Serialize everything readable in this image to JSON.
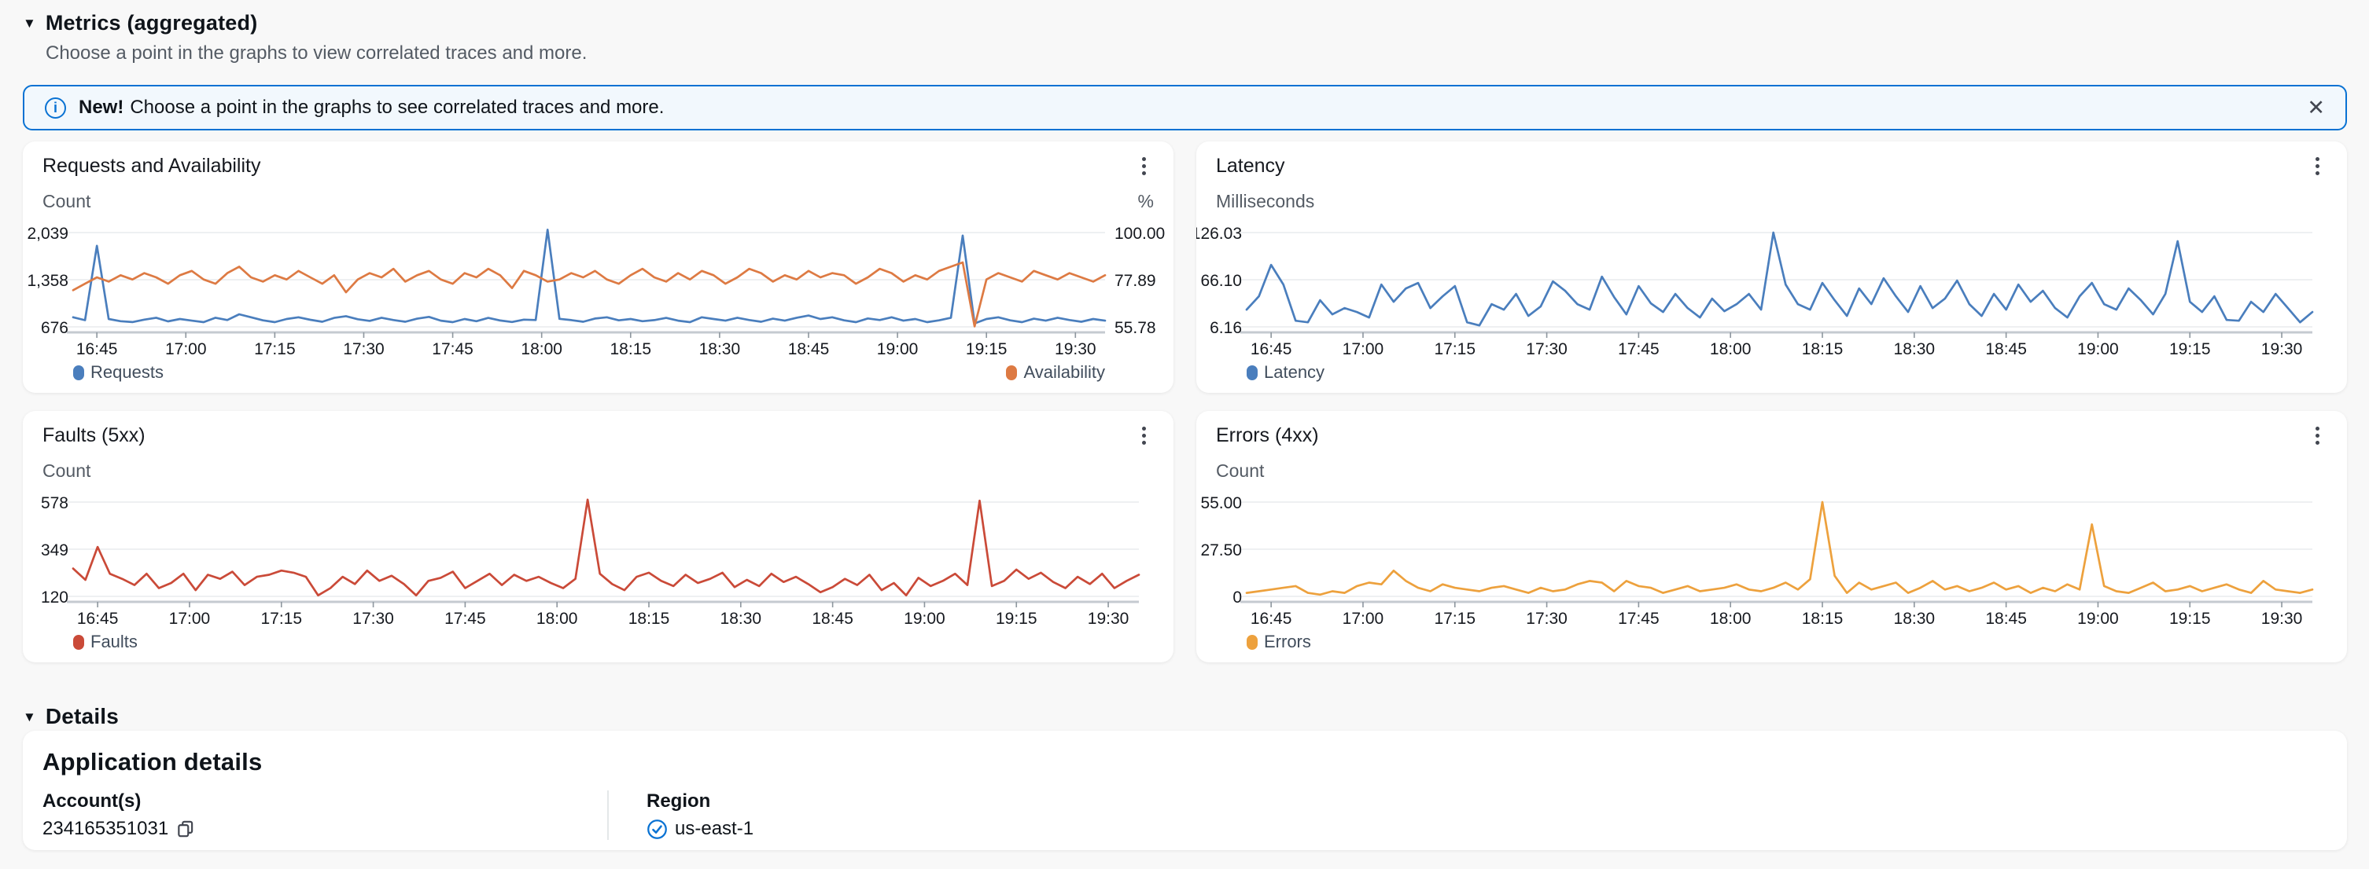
{
  "header": {
    "collapse_icon": "▼",
    "title": "Metrics (aggregated)",
    "subtitle": "Choose a point in the graphs to view correlated traces and more."
  },
  "banner": {
    "info_icon": "i",
    "prefix": "New!",
    "text": "Choose a point in the graphs to see correlated traces and more.",
    "close_icon": "✕"
  },
  "colors": {
    "accent_blue": "#0972d3",
    "series_blue": "#4a7ebd",
    "series_orange": "#dd7a43",
    "series_red": "#ca4a38",
    "series_amber": "#eda13d",
    "gridline": "#e9ebed",
    "baseline": "#c5cad0"
  },
  "x_window": {
    "start": "16:41",
    "end": "19:35",
    "total_min": 174,
    "first_tick_offset_min": 4,
    "tick_interval_min": 15
  },
  "chart_data": [
    {
      "type": "line",
      "title": "Requests and Availability",
      "ylabel": "Count",
      "ylabel_right": "%",
      "yticks": [
        "2,039",
        "1,358",
        "676"
      ],
      "yticks_right": [
        "100.00",
        "77.89",
        "55.78"
      ],
      "ylim": [
        676,
        2039
      ],
      "ylim_right": [
        55.78,
        100.0
      ],
      "x_ticks": [
        "16:45",
        "17:00",
        "17:15",
        "17:30",
        "17:45",
        "18:00",
        "18:15",
        "18:30",
        "18:45",
        "19:00",
        "19:15",
        "19:30"
      ],
      "series": [
        {
          "name": "Requests",
          "axis": "left",
          "color": "#4a7ebd",
          "values": [
            815,
            772,
            1848,
            790,
            758,
            745,
            780,
            808,
            755,
            790,
            766,
            744,
            808,
            775,
            858,
            815,
            770,
            744,
            790,
            815,
            778,
            750,
            805,
            830,
            786,
            762,
            808,
            775,
            750,
            794,
            820,
            766,
            744,
            790,
            758,
            805,
            768,
            746,
            780,
            775,
            2080,
            792,
            774,
            750,
            796,
            815,
            770,
            790,
            758,
            774,
            805,
            766,
            744,
            815,
            790,
            766,
            808,
            775,
            750,
            794,
            766,
            808,
            840,
            790,
            815,
            770,
            744,
            798,
            775,
            815,
            766,
            790,
            744,
            770,
            808,
            1996,
            726,
            790,
            815,
            770,
            744,
            794,
            766,
            808,
            775,
            750,
            790,
            766
          ]
        },
        {
          "name": "Availability",
          "axis": "right",
          "color": "#dd7a43",
          "values": [
            73,
            76,
            79,
            77,
            80,
            78,
            81,
            79,
            76,
            80,
            82,
            78,
            76,
            81,
            84,
            79,
            77,
            80,
            78,
            82,
            79,
            76,
            80,
            72,
            78,
            81,
            79,
            83,
            77,
            80,
            82,
            78,
            76,
            81,
            79,
            83,
            80,
            74,
            82,
            80,
            77,
            78,
            81,
            79,
            82,
            78,
            76,
            80,
            83,
            79,
            77,
            81,
            78,
            82,
            80,
            76,
            79,
            83,
            81,
            77,
            80,
            78,
            82,
            79,
            81,
            80,
            76,
            79,
            83,
            81,
            77,
            80,
            78,
            82,
            84,
            86,
            56,
            78,
            81,
            79,
            77,
            82,
            80,
            78,
            81,
            79,
            77,
            80
          ]
        }
      ],
      "legend": [
        {
          "label": "Requests"
        },
        {
          "label": "Availability"
        }
      ]
    },
    {
      "type": "line",
      "title": "Latency",
      "ylabel": "Milliseconds",
      "yticks": [
        "126.03",
        "66.10",
        "6.16"
      ],
      "ylim": [
        6.16,
        126.03
      ],
      "x_ticks": [
        "16:45",
        "17:00",
        "17:15",
        "17:30",
        "17:45",
        "18:00",
        "18:15",
        "18:30",
        "18:45",
        "19:00",
        "19:15",
        "19:30"
      ],
      "series": [
        {
          "name": "Latency",
          "axis": "left",
          "color": "#4a7ebd",
          "values": [
            28,
            45,
            85,
            60,
            14,
            12,
            40,
            22,
            30,
            25,
            18,
            60,
            38,
            55,
            62,
            30,
            45,
            58,
            12,
            8,
            35,
            28,
            48,
            20,
            32,
            64,
            52,
            35,
            28,
            70,
            44,
            22,
            58,
            36,
            25,
            48,
            30,
            18,
            42,
            26,
            35,
            48,
            28,
            126,
            60,
            35,
            28,
            62,
            40,
            20,
            55,
            35,
            68,
            45,
            25,
            58,
            30,
            42,
            65,
            35,
            20,
            48,
            28,
            60,
            38,
            52,
            30,
            18,
            45,
            62,
            35,
            28,
            55,
            40,
            22,
            48,
            115,
            38,
            25,
            45,
            15,
            14,
            38,
            25,
            48,
            30,
            12,
            25
          ]
        }
      ],
      "legend": [
        {
          "label": "Latency"
        }
      ]
    },
    {
      "type": "line",
      "title": "Faults (5xx)",
      "ylabel": "Count",
      "yticks": [
        "578",
        "349",
        "120"
      ],
      "ylim": [
        120,
        578
      ],
      "x_ticks": [
        "16:45",
        "17:00",
        "17:15",
        "17:30",
        "17:45",
        "18:00",
        "18:15",
        "18:30",
        "18:45",
        "19:00",
        "19:15",
        "19:30"
      ],
      "series": [
        {
          "name": "Faults",
          "axis": "left",
          "color": "#ca4a38",
          "values": [
            255,
            200,
            360,
            230,
            205,
            175,
            230,
            160,
            185,
            230,
            150,
            225,
            205,
            240,
            175,
            215,
            225,
            245,
            235,
            215,
            125,
            160,
            215,
            180,
            245,
            195,
            220,
            180,
            125,
            195,
            210,
            240,
            160,
            195,
            230,
            175,
            225,
            195,
            215,
            185,
            160,
            205,
            590,
            230,
            180,
            150,
            215,
            235,
            195,
            170,
            225,
            185,
            205,
            235,
            165,
            200,
            170,
            230,
            190,
            215,
            180,
            140,
            165,
            205,
            175,
            225,
            150,
            185,
            125,
            210,
            170,
            195,
            230,
            175,
            585,
            170,
            195,
            250,
            205,
            235,
            190,
            160,
            215,
            180,
            230,
            160,
            195,
            225
          ]
        }
      ],
      "legend": [
        {
          "label": "Faults"
        }
      ]
    },
    {
      "type": "line",
      "title": "Errors (4xx)",
      "ylabel": "Count",
      "yticks": [
        "55.00",
        "27.50",
        "0"
      ],
      "ylim": [
        0,
        55
      ],
      "x_ticks": [
        "16:45",
        "17:00",
        "17:15",
        "17:30",
        "17:45",
        "18:00",
        "18:15",
        "18:30",
        "18:45",
        "19:00",
        "19:15",
        "19:30"
      ],
      "series": [
        {
          "name": "Errors",
          "axis": "left",
          "color": "#eda13d",
          "values": [
            2,
            3,
            4,
            5,
            6,
            2,
            1,
            3,
            2,
            6,
            8,
            7,
            15,
            9,
            5,
            3,
            7,
            5,
            4,
            3,
            5,
            6,
            4,
            2,
            5,
            3,
            4,
            7,
            9,
            8,
            3,
            9,
            6,
            5,
            2,
            4,
            6,
            3,
            4,
            5,
            7,
            4,
            3,
            5,
            8,
            4,
            10,
            55,
            12,
            2,
            8,
            4,
            6,
            8,
            2,
            5,
            9,
            4,
            6,
            3,
            5,
            8,
            4,
            6,
            2,
            5,
            3,
            7,
            4,
            42,
            6,
            3,
            2,
            5,
            8,
            3,
            4,
            6,
            3,
            5,
            7,
            4,
            2,
            9,
            4,
            3,
            2,
            4
          ]
        }
      ],
      "legend": [
        {
          "label": "Errors"
        }
      ]
    }
  ],
  "details": {
    "collapse_icon": "▼",
    "title": "Details",
    "card_title": "Application details",
    "account_label": "Account(s)",
    "account_value": "234165351031",
    "copy_icon": "copy-icon",
    "region_label": "Region",
    "region_value": "us-east-1",
    "region_icon": "check-circle-icon"
  }
}
